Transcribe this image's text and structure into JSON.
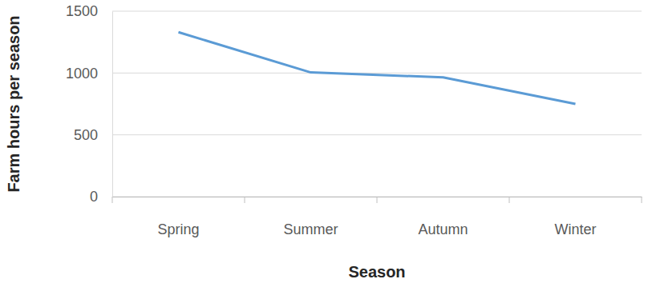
{
  "chart_data": {
    "type": "line",
    "x_label": "Season",
    "y_label": "Farm hours per season",
    "categories": [
      "Spring",
      "Summer",
      "Autumn",
      "Winter"
    ],
    "values": [
      1330,
      1005,
      965,
      750
    ],
    "color": "#5b9bd5",
    "ylim": [
      0,
      1500
    ],
    "yticks": [
      0,
      500,
      1000,
      1500
    ],
    "grid": true
  }
}
